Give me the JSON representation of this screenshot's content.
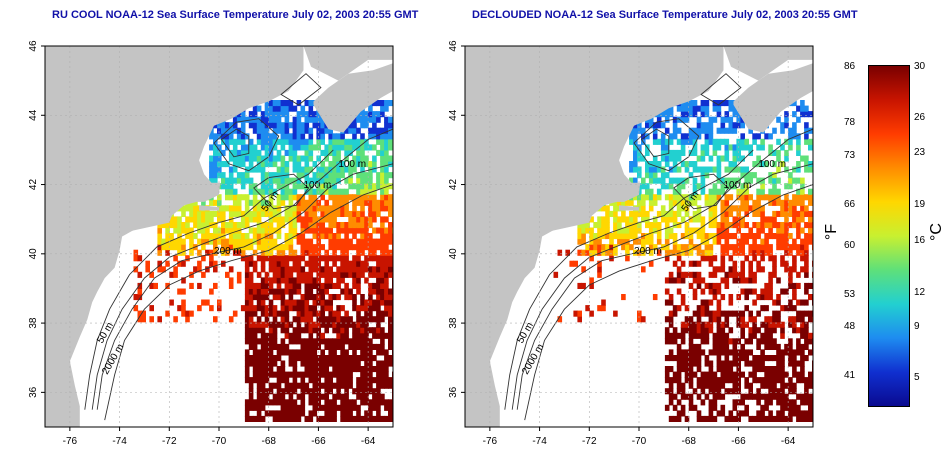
{
  "colors": {
    "land": "#c4c4c4",
    "ocean": "#ffffff",
    "contour": "#333333",
    "title": "#1010a8",
    "grid": "#b0b0b0"
  },
  "panels": [
    {
      "title": "RU COOL NOAA-12 Sea Surface Temperature July 02, 2003 20:55 GMT",
      "variant": "raw"
    },
    {
      "title": "DECLOUDED NOAA-12 Sea Surface Temperature July 02, 2003 20:55 GMT",
      "variant": "declouded"
    }
  ],
  "axes": {
    "x_ticks": [
      "-76",
      "-74",
      "-72",
      "-70",
      "-68",
      "-66",
      "-64"
    ],
    "y_ticks": [
      "46",
      "44",
      "42",
      "40",
      "38",
      "36"
    ]
  },
  "isobath_labels": [
    "100 m",
    "100 m",
    "50 m",
    "200 m",
    "50 m",
    "2000 m"
  ],
  "colorbar": {
    "fahrenheit_label": "°F",
    "celsius_label": "°C",
    "fahrenheit_ticks": [
      "86",
      "78",
      "73",
      "66",
      "60",
      "53",
      "48",
      "41"
    ],
    "celsius_ticks": [
      "30",
      "26",
      "23",
      "19",
      "16",
      "12",
      "9",
      "5"
    ],
    "gradient": [
      "#7a0000",
      "#c81400",
      "#ff3c00",
      "#ff8c00",
      "#ffd700",
      "#c8f030",
      "#5ee07a",
      "#22d0d0",
      "#1e8cf0",
      "#1030d0",
      "#0a0a90"
    ]
  }
}
